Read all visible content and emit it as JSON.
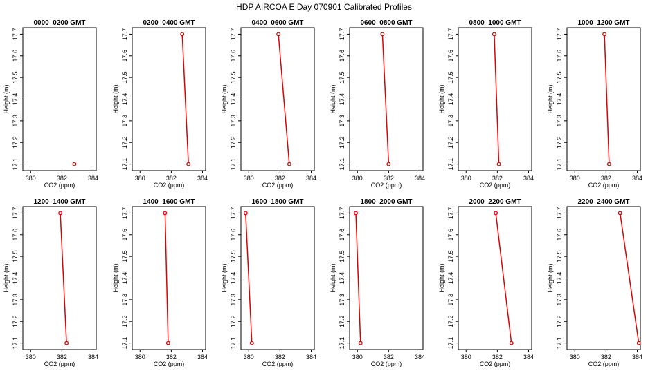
{
  "title": "HDP AIRCOA E  Day 070901  Calibrated Profiles",
  "colors": {
    "series": "#e00000",
    "frame": "#000000",
    "background": "#ffffff"
  },
  "chart_data": {
    "type": "line",
    "xlabel": "CO2 (ppm)",
    "ylabel": "Height (m)",
    "xlim": [
      379.5,
      384.2
    ],
    "ylim": [
      17.07,
      17.73
    ],
    "xticks": [
      380,
      382,
      384
    ],
    "yticks": [
      17.1,
      17.2,
      17.3,
      17.4,
      17.5,
      17.6,
      17.7
    ],
    "panels": [
      {
        "title": "0000–0200 GMT",
        "points": [
          {
            "co2": 382.8,
            "height": 17.1
          }
        ]
      },
      {
        "title": "0200–0400 GMT",
        "points": [
          {
            "co2": 382.7,
            "height": 17.7
          },
          {
            "co2": 383.1,
            "height": 17.1
          }
        ]
      },
      {
        "title": "0400–0600 GMT",
        "points": [
          {
            "co2": 381.9,
            "height": 17.7
          },
          {
            "co2": 382.6,
            "height": 17.1
          }
        ]
      },
      {
        "title": "0600–0800 GMT",
        "points": [
          {
            "co2": 381.6,
            "height": 17.7
          },
          {
            "co2": 382.0,
            "height": 17.1
          }
        ]
      },
      {
        "title": "0800–1000 GMT",
        "points": [
          {
            "co2": 381.8,
            "height": 17.7
          },
          {
            "co2": 382.1,
            "height": 17.1
          }
        ]
      },
      {
        "title": "1000–1200 GMT",
        "points": [
          {
            "co2": 381.9,
            "height": 17.7
          },
          {
            "co2": 382.2,
            "height": 17.1
          }
        ]
      },
      {
        "title": "1200–1400 GMT",
        "points": [
          {
            "co2": 381.9,
            "height": 17.7
          },
          {
            "co2": 382.3,
            "height": 17.1
          }
        ]
      },
      {
        "title": "1400–1600 GMT",
        "points": [
          {
            "co2": 381.6,
            "height": 17.7
          },
          {
            "co2": 381.8,
            "height": 17.1
          }
        ]
      },
      {
        "title": "1600–1800 GMT",
        "points": [
          {
            "co2": 379.8,
            "height": 17.7
          },
          {
            "co2": 380.2,
            "height": 17.1
          }
        ]
      },
      {
        "title": "1800–2000 GMT",
        "points": [
          {
            "co2": 379.9,
            "height": 17.7
          },
          {
            "co2": 380.2,
            "height": 17.1
          }
        ]
      },
      {
        "title": "2000–2200 GMT",
        "points": [
          {
            "co2": 381.9,
            "height": 17.7
          },
          {
            "co2": 382.9,
            "height": 17.1
          }
        ]
      },
      {
        "title": "2200–2400 GMT",
        "points": [
          {
            "co2": 382.9,
            "height": 17.7
          },
          {
            "co2": 384.1,
            "height": 17.1
          }
        ]
      }
    ]
  }
}
